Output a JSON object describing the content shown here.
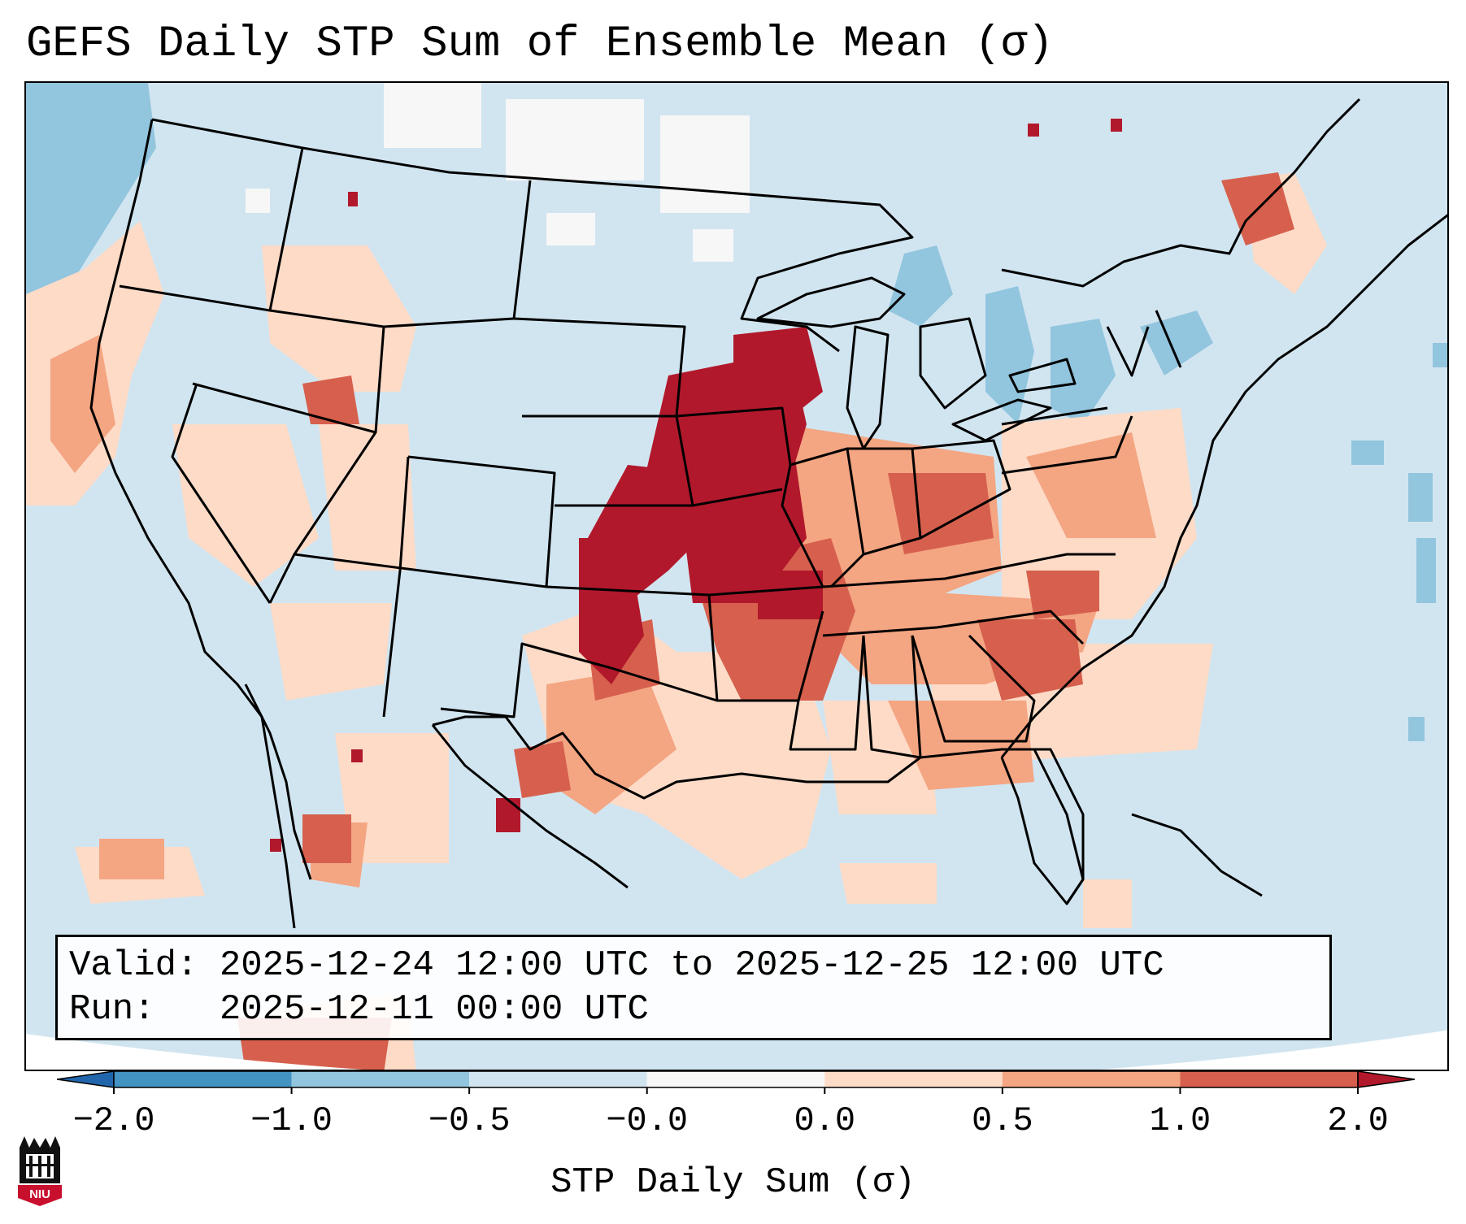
{
  "title": "GEFS Daily STP Sum of Ensemble Mean (σ)",
  "info_box": {
    "valid_line": "Valid: 2025-12-24 12:00 UTC to 2025-12-25 12:00 UTC",
    "run_line": "Run:   2025-12-11 00:00 UTC"
  },
  "colorbar": {
    "label": "STP Daily Sum (σ)",
    "tick_labels": [
      "−2.0",
      "−1.0",
      "−0.5",
      "−0.0",
      "0.0",
      "0.5",
      "1.0",
      "2.0"
    ],
    "bins": [
      {
        "range": "< -2.0",
        "color": "#2166ac"
      },
      {
        "range": "-2.0 to -1.0",
        "color": "#4393c3"
      },
      {
        "range": "-1.0 to -0.5",
        "color": "#92c5de"
      },
      {
        "range": "-0.5 to -0.0",
        "color": "#d1e5f0"
      },
      {
        "range": "-0.0 to 0.0",
        "color": "#f7f7f7"
      },
      {
        "range": "0.0 to 0.5",
        "color": "#fddbc7"
      },
      {
        "range": "0.5 to 1.0",
        "color": "#f4a582"
      },
      {
        "range": "1.0 to 2.0",
        "color": "#d6604d"
      },
      {
        "range": "> 2.0",
        "color": "#b2182b"
      }
    ]
  },
  "map": {
    "projection": "Lambert Conformal",
    "region": "Contiguous United States",
    "anomaly_field": [
      {
        "region": "Central Plains / Missouri / Iowa",
        "level": "> 2.0",
        "color": "#b2182b"
      },
      {
        "region": "Oklahoma / Kansas / Arkansas",
        "level": "1.0 to 2.0",
        "color": "#d6604d"
      },
      {
        "region": "Ohio Valley / Southeast",
        "level": "0.5 to 1.0",
        "color": "#f4a582"
      },
      {
        "region": "Gulf Coast / Mid-Atlantic",
        "level": "0.0 to 0.5",
        "color": "#fddbc7"
      },
      {
        "region": "Great Lakes / Pacific Northwest offshore",
        "level": "-1.0 to -0.5",
        "color": "#92c5de"
      },
      {
        "region": "Northern Plains",
        "level": "-0.0 to 0.0",
        "color": "#f7f7f7"
      }
    ]
  },
  "logo": {
    "text": "NIU"
  }
}
